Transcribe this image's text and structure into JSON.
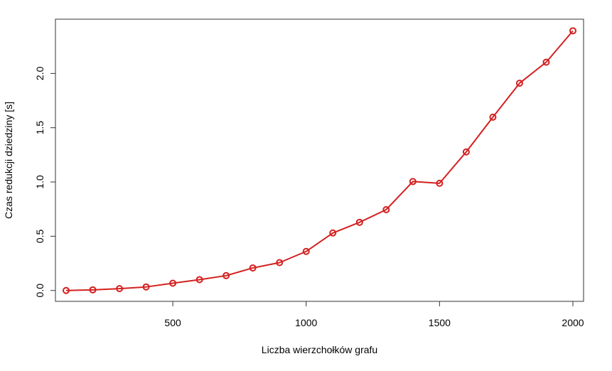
{
  "chart_data": {
    "type": "line",
    "title": "",
    "xlabel": "Liczba wierzchołków grafu",
    "ylabel": "Czas redukcji dziedziny [s]",
    "xlim": [
      60,
      2040
    ],
    "ylim": [
      -0.1,
      2.5
    ],
    "xticks": [
      500,
      1000,
      1500,
      2000
    ],
    "yticks": [
      0.0,
      0.5,
      1.0,
      1.5,
      2.0
    ],
    "ytick_labels": [
      "0.0",
      "0.5",
      "1.0",
      "1.5",
      "2.0"
    ],
    "grid": false,
    "legend": "none",
    "colors": {
      "series": "#d42020",
      "axis": "#333333"
    },
    "series": [
      {
        "x": [
          100,
          200,
          300,
          400,
          500,
          600,
          700,
          800,
          900,
          1000,
          1100,
          1200,
          1300,
          1400,
          1500,
          1600,
          1700,
          1800,
          1900,
          2000
        ],
        "values": [
          0.0,
          0.006,
          0.017,
          0.033,
          0.067,
          0.1,
          0.137,
          0.208,
          0.257,
          0.36,
          0.53,
          0.628,
          0.745,
          1.004,
          0.988,
          1.277,
          1.597,
          1.91,
          2.104,
          2.393
        ]
      }
    ]
  }
}
